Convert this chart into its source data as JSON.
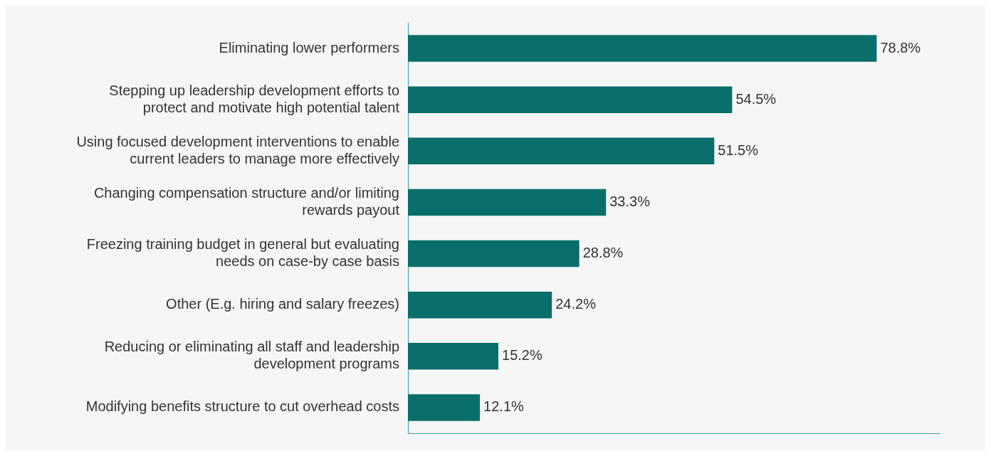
{
  "chart_data": {
    "type": "bar",
    "orientation": "horizontal",
    "categories": [
      "Eliminating lower performers",
      "Stepping up leadership development efforts to protect and motivate high potential talent",
      "Using focused development interventions to enable current leaders to manage more effectively",
      "Changing compensation structure and/or limiting rewards payout",
      "Freezing training budget in general but evaluating needs on case-by case basis",
      "Other (E.g. hiring and salary freezes)",
      "Reducing or eliminating all staff and leadership development programs",
      "Modifying benefits structure to cut overhead costs"
    ],
    "values": [
      78.8,
      54.5,
      51.5,
      33.3,
      28.8,
      24.2,
      15.2,
      12.1
    ],
    "value_labels": [
      "78.8%",
      "54.5%",
      "51.5%",
      "33.3%",
      "28.8%",
      "24.2%",
      "15.2%",
      "12.1%"
    ],
    "color": "#0a6e6a",
    "xlim": [
      0,
      89.4
    ],
    "tick_labels": "y",
    "grid": false,
    "legend": false
  }
}
